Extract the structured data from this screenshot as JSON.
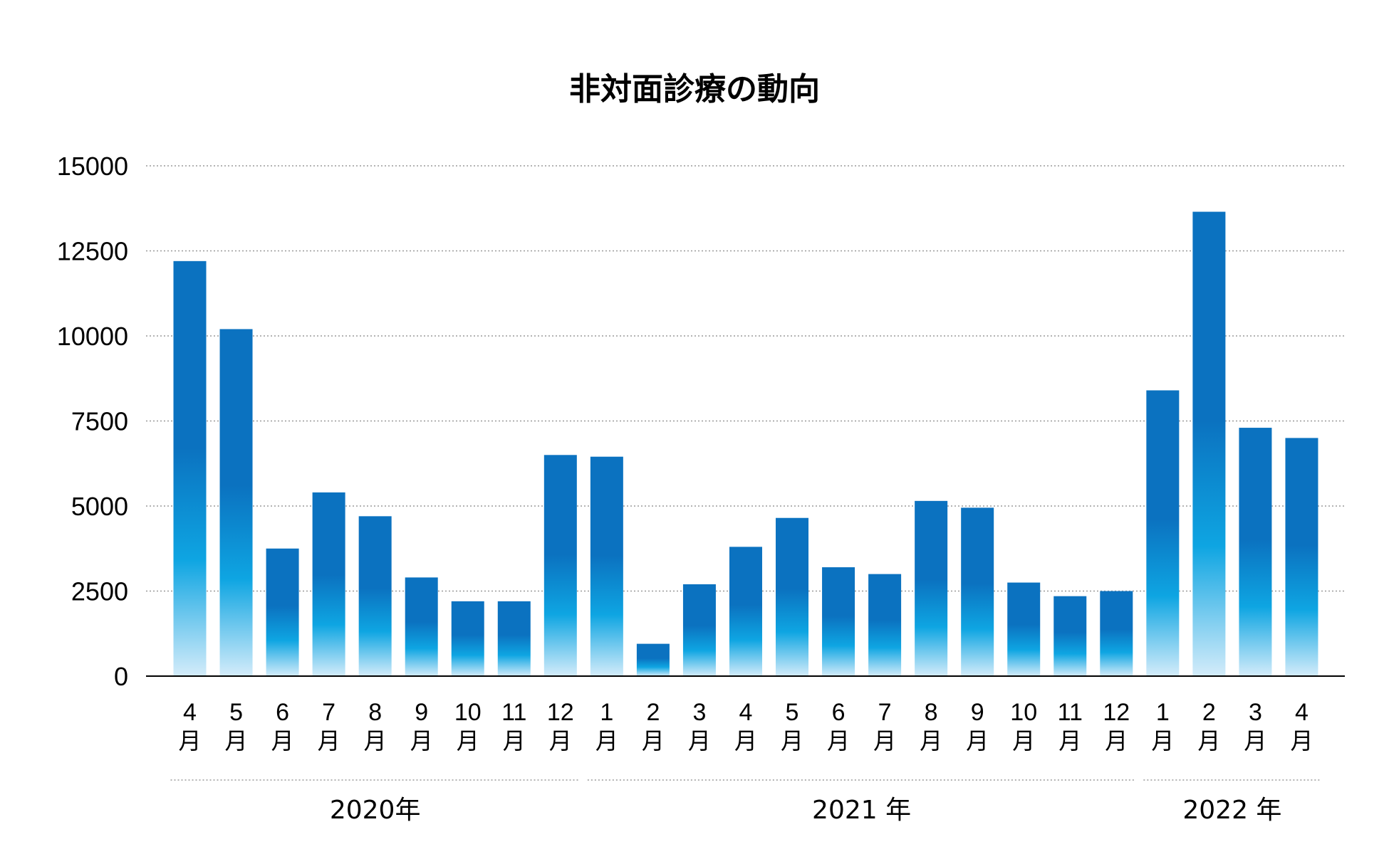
{
  "chart_data": {
    "type": "bar",
    "title": "非対面診療の動向",
    "xlabel": "",
    "ylabel": "",
    "ylim": [
      0,
      15000
    ],
    "yticks": [
      "0",
      "2500",
      "5000",
      "7500",
      "10000",
      "12500",
      "15000"
    ],
    "grid": true,
    "month_suffix": "月",
    "categories": [
      "4",
      "5",
      "6",
      "7",
      "8",
      "9",
      "10",
      "11",
      "12",
      "1",
      "2",
      "3",
      "4",
      "5",
      "6",
      "7",
      "8",
      "9",
      "10",
      "11",
      "12",
      "1",
      "2",
      "3",
      "4"
    ],
    "values": [
      12200,
      10200,
      3750,
      5400,
      4700,
      2900,
      2200,
      2200,
      6500,
      6450,
      950,
      2700,
      3800,
      4650,
      3200,
      3000,
      5150,
      4950,
      2750,
      2350,
      2500,
      8400,
      13650,
      7300,
      7000
    ],
    "year_groups": [
      {
        "label": "2020年",
        "start": 0,
        "end": 8
      },
      {
        "label": "2021 年",
        "start": 9,
        "end": 20
      },
      {
        "label": "2022 年",
        "start": 21,
        "end": 24
      }
    ],
    "colors": {
      "bar_top": "#0b72c0",
      "bar_mid": "#0ea5e2",
      "bar_bottom": "#d4ecfa",
      "grid": "#9a9a9a",
      "axis": "#000000"
    }
  }
}
